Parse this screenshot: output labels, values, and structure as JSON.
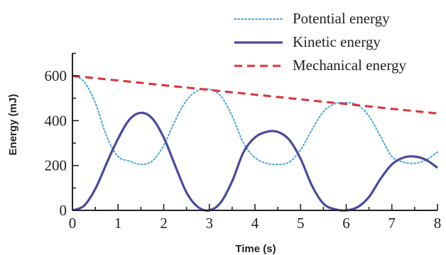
{
  "colors": {
    "potential": "#4aa8d8",
    "kinetic": "#4a4aa0",
    "mechanical": "#e0303a",
    "axis": "#222222"
  },
  "chart_data": {
    "type": "line",
    "title": "",
    "xlabel": "Time (s)",
    "ylabel": "Energy (mJ)",
    "xlim": [
      0,
      8
    ],
    "ylim": [
      0,
      700
    ],
    "xticks": [
      0,
      1,
      2,
      3,
      4,
      5,
      6,
      7,
      8
    ],
    "yticks": [
      0,
      200,
      400,
      600
    ],
    "grid": false,
    "legend_position": "top-right",
    "series": [
      {
        "name": "Potential energy",
        "style": "dotted",
        "color": "#4aa8d8",
        "x": [
          0,
          0.25,
          0.5,
          0.75,
          1,
          1.25,
          1.5,
          1.75,
          2,
          2.25,
          2.5,
          2.75,
          3,
          3.25,
          3.5,
          3.75,
          4,
          4.25,
          4.5,
          4.75,
          5,
          5.25,
          5.5,
          5.75,
          6,
          6.25,
          6.5,
          6.75,
          7,
          7.25,
          7.5,
          7.75,
          8
        ],
        "values": [
          600,
          575,
          480,
          330,
          240,
          220,
          205,
          220,
          290,
          400,
          490,
          535,
          540,
          510,
          420,
          300,
          235,
          210,
          205,
          215,
          270,
          360,
          440,
          475,
          480,
          470,
          420,
          330,
          240,
          215,
          210,
          225,
          260
        ]
      },
      {
        "name": "Kinetic energy",
        "style": "solid",
        "color": "#4a4aa0",
        "x": [
          0,
          0.25,
          0.5,
          0.75,
          1,
          1.25,
          1.5,
          1.75,
          2,
          2.25,
          2.5,
          2.75,
          3,
          3.25,
          3.5,
          3.75,
          4,
          4.25,
          4.5,
          4.75,
          5,
          5.25,
          5.5,
          5.75,
          6,
          6.25,
          6.5,
          6.75,
          7,
          7.25,
          7.5,
          7.75,
          8
        ],
        "values": [
          0,
          20,
          95,
          210,
          320,
          405,
          435,
          410,
          325,
          200,
          80,
          15,
          0,
          35,
          130,
          260,
          325,
          350,
          350,
          315,
          230,
          110,
          30,
          5,
          0,
          15,
          60,
          140,
          205,
          235,
          240,
          225,
          190
        ]
      },
      {
        "name": "Mechanical energy",
        "style": "dashed",
        "color": "#e0303a",
        "x": [
          0,
          8
        ],
        "values": [
          600,
          432
        ]
      }
    ]
  }
}
